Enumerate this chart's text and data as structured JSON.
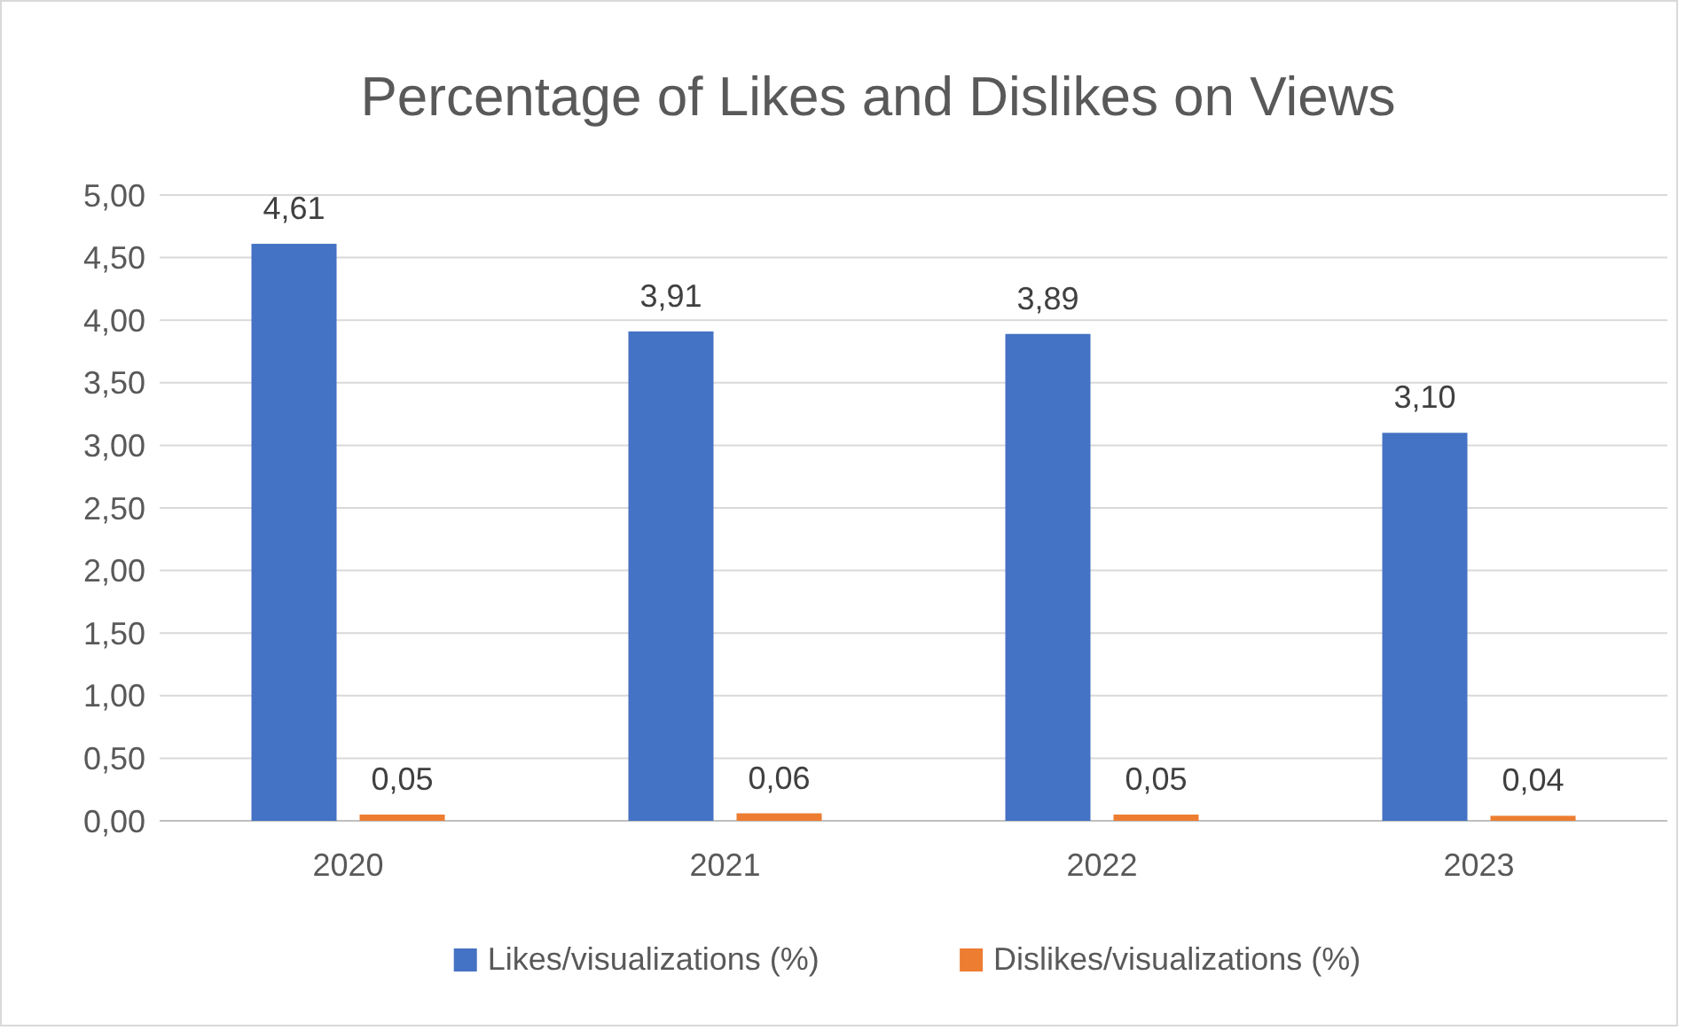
{
  "chart_data": {
    "type": "bar",
    "title": "Percentage of Likes and Dislikes on Views",
    "categories": [
      "2020",
      "2021",
      "2022",
      "2023"
    ],
    "series": [
      {
        "name": "Likes/visualizations (%)",
        "color": "#4472c4",
        "values": [
          4.61,
          3.91,
          3.89,
          3.1
        ],
        "value_labels": [
          "4,61",
          "3,91",
          "3,89",
          "3,10"
        ]
      },
      {
        "name": "Dislikes/visualizations (%)",
        "color": "#ed7d31",
        "values": [
          0.05,
          0.06,
          0.05,
          0.04
        ],
        "value_labels": [
          "0,05",
          "0,06",
          "0,05",
          "0,04"
        ]
      }
    ],
    "ylim": [
      0,
      5
    ],
    "yticks": [
      {
        "value": 0,
        "label": "0,00"
      },
      {
        "value": 0.5,
        "label": "0,50"
      },
      {
        "value": 1,
        "label": "1,00"
      },
      {
        "value": 1.5,
        "label": "1,50"
      },
      {
        "value": 2,
        "label": "2,00"
      },
      {
        "value": 2.5,
        "label": "2,50"
      },
      {
        "value": 3,
        "label": "3,00"
      },
      {
        "value": 3.5,
        "label": "3,50"
      },
      {
        "value": 4,
        "label": "4,00"
      },
      {
        "value": 4.5,
        "label": "4,50"
      },
      {
        "value": 5,
        "label": "5,00"
      }
    ],
    "grid": "y",
    "legend": "bottom"
  }
}
